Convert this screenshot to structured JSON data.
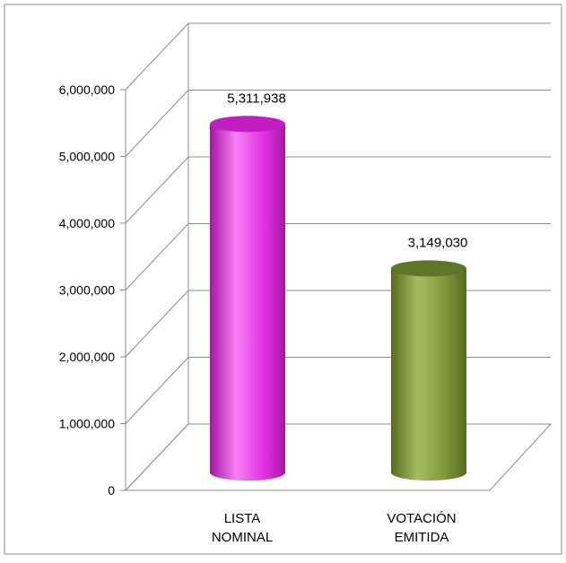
{
  "chart_data": {
    "type": "bar",
    "style": "3d-cylinder",
    "categories": [
      "LISTA NOMINAL",
      "VOTACIÓN EMITIDA"
    ],
    "category_lines": [
      [
        "LISTA",
        "NOMINAL"
      ],
      [
        "VOTACIÓN",
        "EMITIDA"
      ]
    ],
    "values": [
      5311938,
      3149030
    ],
    "data_labels": [
      "5,311,938",
      "3,149,030"
    ],
    "y_ticks": [
      0,
      1000000,
      2000000,
      3000000,
      4000000,
      5000000,
      6000000
    ],
    "y_tick_labels": [
      "0",
      "1,000,000",
      "2,000,000",
      "3,000,000",
      "4,000,000",
      "5,000,000",
      "6,000,000"
    ],
    "ylim": [
      0,
      6000000
    ],
    "grid": true,
    "legend": "none",
    "colors": {
      "bar1_main": "#e633e6",
      "bar1_light": "#f580f5",
      "bar1_dark": "#a617a6",
      "bar1_top": "#c21fc2",
      "bar2_main": "#7f9a3a",
      "bar2_light": "#a4bd5e",
      "bar2_dark": "#566b22",
      "bar2_top": "#5e7527",
      "grid": "#8c8c8c",
      "border": "#8c8c8c"
    }
  }
}
